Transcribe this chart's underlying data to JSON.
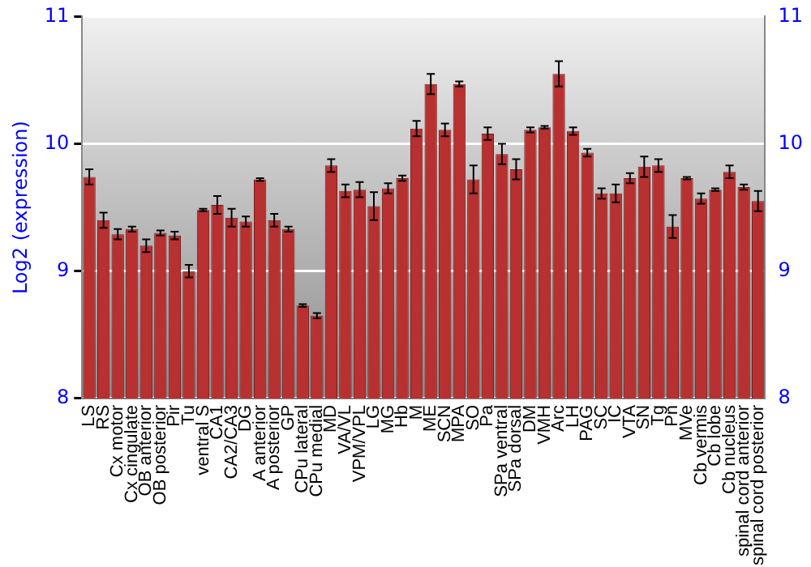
{
  "chart_data": {
    "type": "bar",
    "ylabel": "Log2 (expression)",
    "categories": [
      "LS",
      "RS",
      "Cx motor",
      "Cx cingulate",
      "OB anterior",
      "OB posterior",
      "Pir",
      "Tu",
      "ventral S",
      "CA1",
      "CA2/CA3",
      "DG",
      "A anterior",
      "A posterior",
      "GP",
      "CPu lateral",
      "CPu medial",
      "MD",
      "VA/VL",
      "VPM/VPL",
      "LG",
      "MG",
      "Hb",
      "M",
      "ME",
      "SCN",
      "MPA",
      "SO",
      "Pa",
      "SPa ventral",
      "SPa dorsal",
      "DM",
      "VMH",
      "Arc",
      "LH",
      "PAG",
      "SC",
      "IC",
      "VTA",
      "SN",
      "Tg",
      "Pn",
      "MVe",
      "Cb vermis",
      "Cb lobe",
      "Cb nucleus",
      "spinal cord anterior",
      "spinal cord posterior"
    ],
    "values": [
      9.74,
      9.4,
      9.29,
      9.33,
      9.2,
      9.3,
      9.28,
      9.0,
      9.48,
      9.52,
      9.42,
      9.39,
      9.72,
      9.4,
      9.33,
      8.73,
      8.65,
      9.83,
      9.63,
      9.64,
      9.51,
      9.65,
      9.73,
      10.12,
      10.47,
      10.11,
      10.47,
      9.72,
      10.08,
      9.92,
      9.8,
      10.11,
      10.13,
      10.55,
      10.1,
      9.93,
      9.61,
      9.61,
      9.73,
      9.82,
      9.83,
      9.35,
      9.73,
      9.57,
      9.64,
      9.78,
      9.66,
      9.55
    ],
    "errors": [
      0.06,
      0.06,
      0.04,
      0.02,
      0.05,
      0.02,
      0.03,
      0.05,
      0.01,
      0.07,
      0.07,
      0.04,
      0.01,
      0.05,
      0.02,
      0.01,
      0.02,
      0.05,
      0.05,
      0.06,
      0.11,
      0.04,
      0.02,
      0.06,
      0.08,
      0.05,
      0.02,
      0.11,
      0.05,
      0.08,
      0.08,
      0.02,
      0.01,
      0.1,
      0.03,
      0.03,
      0.04,
      0.07,
      0.04,
      0.08,
      0.05,
      0.09,
      0.01,
      0.04,
      0.01,
      0.05,
      0.02,
      0.08
    ],
    "color": "#b83030",
    "ylim": [
      8,
      11
    ],
    "yticks": [
      8,
      9,
      10,
      11
    ],
    "y2lim": [
      8,
      11
    ],
    "y2ticks": [
      8,
      9,
      10,
      11
    ],
    "grid": "y",
    "legend": false
  }
}
